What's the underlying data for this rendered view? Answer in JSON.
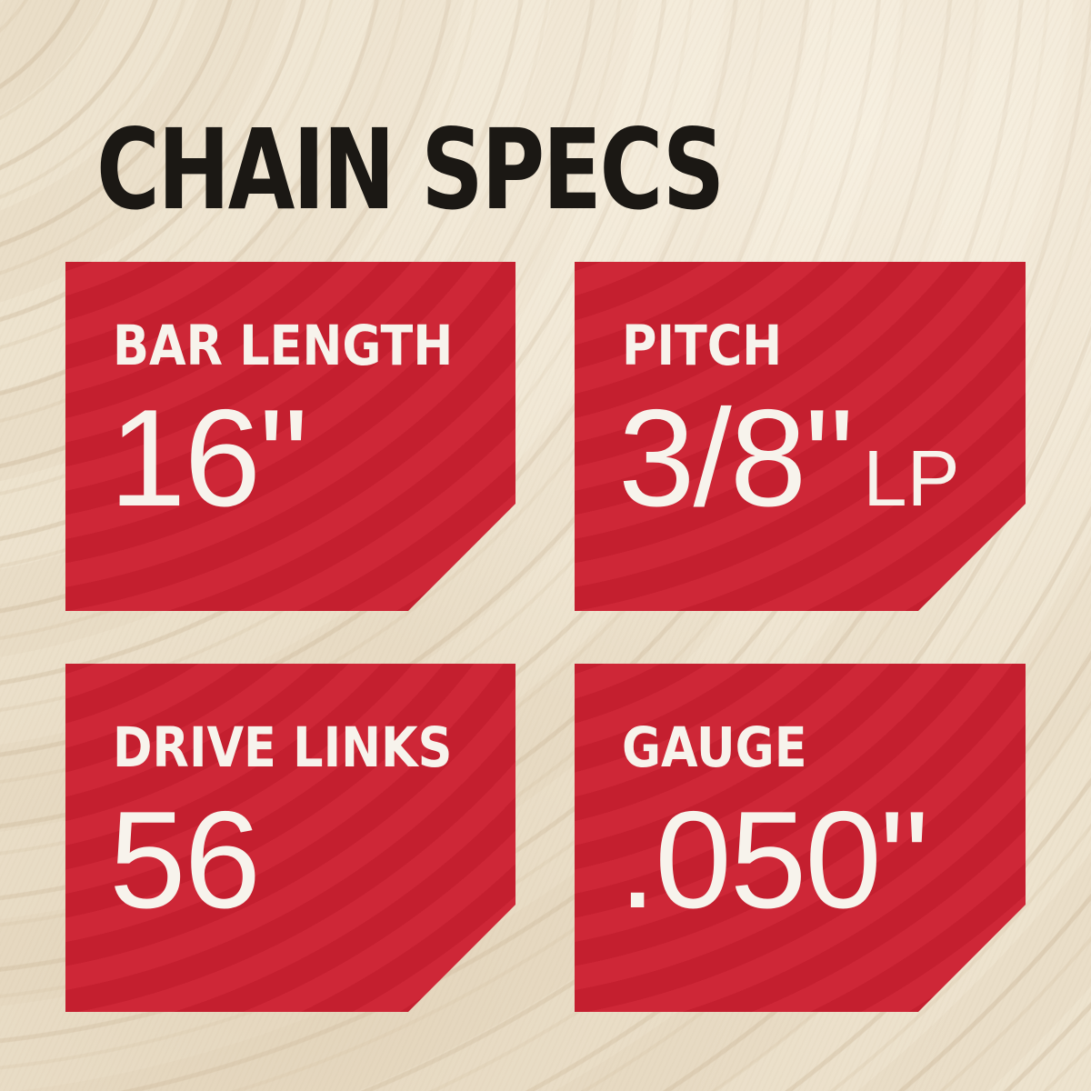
{
  "title": "CHAIN SPECS",
  "colors": {
    "card_red": "#cc2031",
    "title_black": "#1b1814",
    "text_white": "#f7f3ec",
    "background_cream": "#ece1cc"
  },
  "cards": [
    {
      "id": "bar-length",
      "label": "BAR LENGTH",
      "value": "16\"",
      "suffix": ""
    },
    {
      "id": "pitch",
      "label": "PITCH",
      "value": "3/8\"",
      "suffix": "LP"
    },
    {
      "id": "drive-links",
      "label": "DRIVE LINKS",
      "value": "56",
      "suffix": ""
    },
    {
      "id": "gauge",
      "label": "GAUGE",
      "value": ".050\"",
      "suffix": ""
    }
  ]
}
